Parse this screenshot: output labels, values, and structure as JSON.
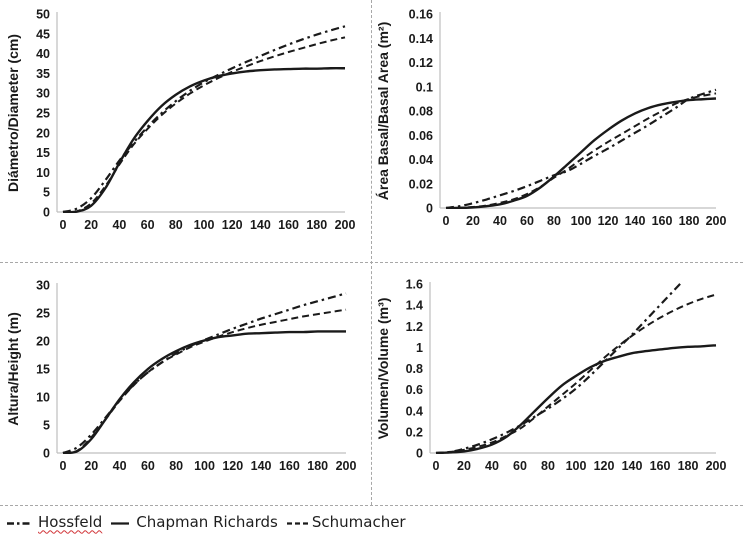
{
  "legend": {
    "items": [
      {
        "label": "Hossfeld",
        "style": "dashdot",
        "misspelled": true
      },
      {
        "label": "Chapman Richards",
        "style": "solid",
        "misspelled": false
      },
      {
        "label": "Schumacher",
        "style": "dashed",
        "misspelled": false
      }
    ]
  },
  "colors": {
    "line": "#1a1a1a",
    "axis": "#bfbfbf",
    "divider": "#a8a8a8",
    "squiggle": "#d13438",
    "text": "#1a1a1a"
  },
  "chart_data": [
    {
      "type": "line",
      "name": "diameter",
      "ylabel": "Diámetro/Diameter (cm)",
      "xlabel": "",
      "xlim": [
        0,
        200
      ],
      "ylim": [
        0,
        50
      ],
      "xticks": [
        0,
        20,
        40,
        60,
        80,
        100,
        120,
        140,
        160,
        180,
        200
      ],
      "ytick_values": [
        0,
        5,
        10,
        15,
        20,
        25,
        30,
        35,
        40,
        45,
        50
      ],
      "ytick_labels": [
        "0",
        "5",
        "10",
        "15",
        "20",
        "25",
        "30",
        "35",
        "40",
        "45",
        "50"
      ],
      "grid": false,
      "x": [
        0,
        10,
        20,
        30,
        40,
        50,
        60,
        70,
        80,
        90,
        100,
        110,
        120,
        130,
        140,
        150,
        160,
        170,
        180,
        190,
        200
      ],
      "series": [
        {
          "name": "Hossfeld",
          "style": "dashdot",
          "values": [
            0,
            0.9,
            3.5,
            8.0,
            13.0,
            17.5,
            21.5,
            25.0,
            28.0,
            30.6,
            32.8,
            34.6,
            36.3,
            37.9,
            39.4,
            40.9,
            42.3,
            43.6,
            44.8,
            45.9,
            46.9
          ]
        },
        {
          "name": "Chapman Richards",
          "style": "solid",
          "values": [
            0,
            0.1,
            1.6,
            6.0,
            12.4,
            18.4,
            23.0,
            26.8,
            29.6,
            31.7,
            33.2,
            34.3,
            35.0,
            35.5,
            35.8,
            36.0,
            36.1,
            36.2,
            36.2,
            36.3,
            36.3
          ]
        },
        {
          "name": "Schumacher",
          "style": "dashed",
          "values": [
            0,
            0.2,
            2.2,
            6.5,
            12.0,
            17.0,
            21.0,
            24.5,
            27.4,
            29.9,
            32.0,
            33.8,
            35.4,
            36.8,
            38.1,
            39.3,
            40.4,
            41.4,
            42.4,
            43.3,
            44.1
          ]
        }
      ]
    },
    {
      "type": "line",
      "name": "basal-area",
      "ylabel": "Área Basal/Basal Area (m²)",
      "xlabel": "",
      "xlim": [
        0,
        200
      ],
      "ylim": [
        0,
        0.16
      ],
      "xticks": [
        0,
        20,
        40,
        60,
        80,
        100,
        120,
        140,
        160,
        180,
        200
      ],
      "ytick_values": [
        0,
        0.02,
        0.04,
        0.06,
        0.08,
        0.1,
        0.12,
        0.14,
        0.16
      ],
      "ytick_labels": [
        "0",
        "0.02",
        "0.04",
        "0.06",
        "0.08",
        "0.1",
        "0.12",
        "0.14",
        "0.16"
      ],
      "grid": false,
      "x": [
        0,
        10,
        20,
        30,
        40,
        50,
        60,
        70,
        80,
        90,
        100,
        110,
        120,
        130,
        140,
        150,
        160,
        170,
        180,
        190,
        200
      ],
      "series": [
        {
          "name": "Hossfeld",
          "style": "dashdot",
          "values": [
            0,
            0.0015,
            0.004,
            0.007,
            0.0105,
            0.014,
            0.018,
            0.0225,
            0.027,
            0.0305,
            0.0365,
            0.043,
            0.049,
            0.0555,
            0.062,
            0.0685,
            0.0755,
            0.0825,
            0.09,
            0.094,
            0.0975
          ]
        },
        {
          "name": "Chapman Richards",
          "style": "solid",
          "values": [
            0,
            0.0001,
            0.0005,
            0.0015,
            0.003,
            0.006,
            0.01,
            0.017,
            0.026,
            0.036,
            0.046,
            0.056,
            0.0645,
            0.072,
            0.078,
            0.0825,
            0.0855,
            0.0875,
            0.089,
            0.0897,
            0.0903
          ]
        },
        {
          "name": "Schumacher",
          "style": "dashed",
          "values": [
            0,
            0.0002,
            0.0008,
            0.002,
            0.0042,
            0.0072,
            0.0115,
            0.0175,
            0.025,
            0.032,
            0.04,
            0.0475,
            0.0545,
            0.061,
            0.0675,
            0.074,
            0.08,
            0.086,
            0.09,
            0.0925,
            0.0945
          ]
        }
      ]
    },
    {
      "type": "line",
      "name": "height",
      "ylabel": "Altura/Height (m)",
      "xlabel": "",
      "xlim": [
        0,
        200
      ],
      "ylim": [
        0,
        30
      ],
      "xticks": [
        0,
        20,
        40,
        60,
        80,
        100,
        120,
        140,
        160,
        180,
        200
      ],
      "ytick_values": [
        0,
        5,
        10,
        15,
        20,
        25,
        30
      ],
      "ytick_labels": [
        "0",
        "5",
        "10",
        "15",
        "20",
        "25",
        "30"
      ],
      "grid": false,
      "x": [
        0,
        10,
        20,
        30,
        40,
        50,
        60,
        70,
        80,
        90,
        100,
        110,
        120,
        130,
        140,
        150,
        160,
        170,
        180,
        190,
        200
      ],
      "series": [
        {
          "name": "Hossfeld",
          "style": "dashdot",
          "values": [
            0,
            1.0,
            3.3,
            6.3,
            9.4,
            12.2,
            14.4,
            16.2,
            17.8,
            19.1,
            20.2,
            21.2,
            22.2,
            23.1,
            24.0,
            24.8,
            25.6,
            26.4,
            27.1,
            27.8,
            28.5
          ]
        },
        {
          "name": "Chapman Richards",
          "style": "solid",
          "values": [
            0,
            0.3,
            2.5,
            6.0,
            9.6,
            12.6,
            15.0,
            16.8,
            18.2,
            19.3,
            20.1,
            20.7,
            21.0,
            21.3,
            21.4,
            21.5,
            21.6,
            21.6,
            21.7,
            21.7,
            21.7
          ]
        },
        {
          "name": "Schumacher",
          "style": "dashed",
          "values": [
            0,
            0.4,
            2.8,
            6.0,
            9.3,
            12.1,
            14.4,
            16.2,
            17.6,
            18.9,
            19.9,
            20.8,
            21.6,
            22.3,
            22.9,
            23.4,
            23.9,
            24.4,
            24.8,
            25.2,
            25.6
          ]
        }
      ]
    },
    {
      "type": "line",
      "name": "volume",
      "ylabel": "Volumen/Volume (m³)",
      "xlabel": "",
      "xlim": [
        0,
        200
      ],
      "ylim": [
        0,
        1.6
      ],
      "xticks": [
        0,
        20,
        40,
        60,
        80,
        100,
        120,
        140,
        160,
        180,
        200
      ],
      "ytick_values": [
        0,
        0.2,
        0.4,
        0.6,
        0.8,
        1,
        1.2,
        1.4,
        1.6
      ],
      "ytick_labels": [
        "0",
        "0.2",
        "0.4",
        "0.6",
        "0.8",
        "1",
        "1.2",
        "1.4",
        "1.6"
      ],
      "grid": false,
      "x": [
        0,
        10,
        20,
        30,
        40,
        50,
        60,
        70,
        80,
        90,
        100,
        110,
        120,
        130,
        140,
        150,
        160,
        170,
        180,
        190,
        200
      ],
      "series": [
        {
          "name": "Hossfeld",
          "style": "dashdot",
          "values": [
            0,
            0.01,
            0.04,
            0.08,
            0.13,
            0.19,
            0.26,
            0.34,
            0.42,
            0.51,
            0.61,
            0.73,
            0.86,
            0.99,
            1.12,
            1.26,
            1.4,
            1.54,
            1.68,
            null,
            null
          ]
        },
        {
          "name": "Chapman Richards",
          "style": "solid",
          "values": [
            0,
            0.005,
            0.015,
            0.04,
            0.08,
            0.15,
            0.26,
            0.39,
            0.52,
            0.64,
            0.73,
            0.81,
            0.87,
            0.91,
            0.945,
            0.965,
            0.98,
            0.995,
            1.005,
            1.01,
            1.02
          ]
        },
        {
          "name": "Schumacher",
          "style": "dashed",
          "values": [
            0,
            0.01,
            0.03,
            0.06,
            0.1,
            0.16,
            0.23,
            0.33,
            0.44,
            0.55,
            0.66,
            0.78,
            0.9,
            1.01,
            1.11,
            1.2,
            1.28,
            1.35,
            1.41,
            1.46,
            1.5
          ]
        }
      ]
    }
  ]
}
